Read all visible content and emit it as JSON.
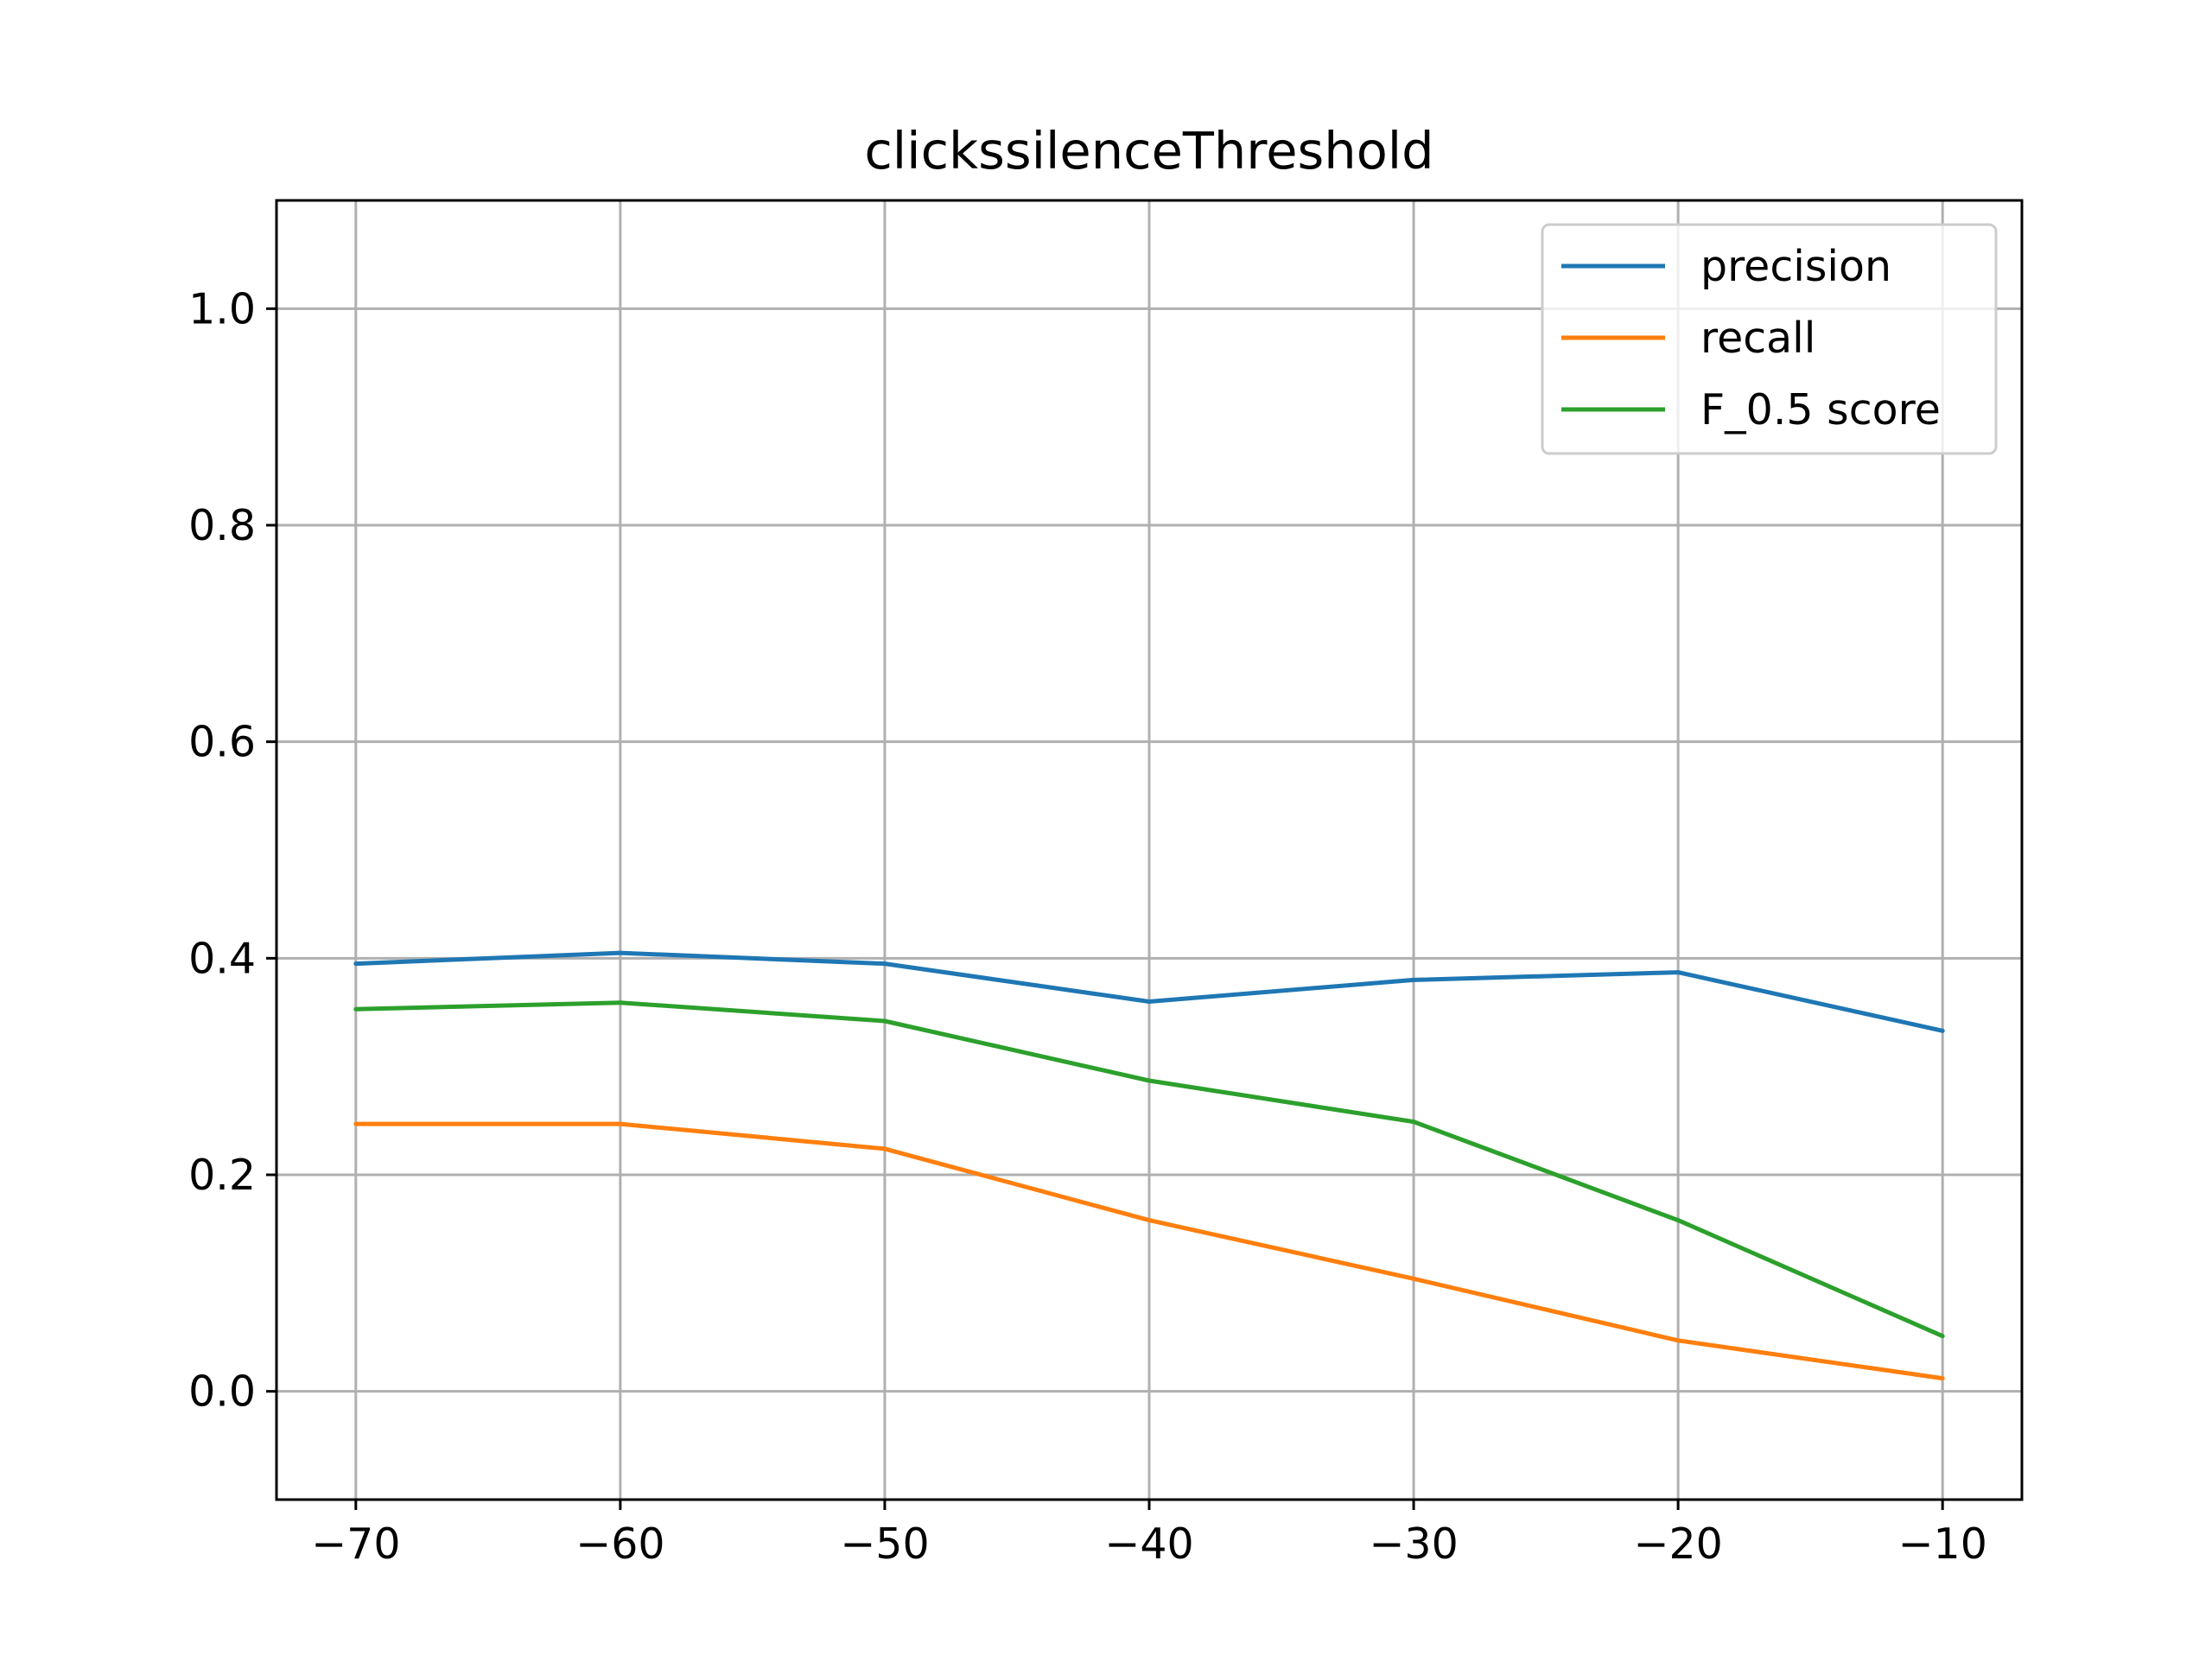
{
  "chart_data": {
    "type": "line",
    "title": "clickssilenceThreshold",
    "xlabel": "",
    "ylabel": "",
    "x": [
      -70,
      -60,
      -50,
      -40,
      -30,
      -20,
      -10
    ],
    "xlim": [
      -73,
      -7
    ],
    "ylim": [
      -0.1,
      1.1
    ],
    "x_ticks": [
      -70,
      -60,
      -50,
      -40,
      -30,
      -20,
      -10
    ],
    "x_tick_labels": [
      "−70",
      "−60",
      "−50",
      "−40",
      "−30",
      "−20",
      "−10"
    ],
    "y_ticks": [
      0.0,
      0.2,
      0.4,
      0.6,
      0.8,
      1.0
    ],
    "y_tick_labels": [
      "0.0",
      "0.2",
      "0.4",
      "0.6",
      "0.8",
      "1.0"
    ],
    "grid": true,
    "legend_position": "top-right",
    "series": [
      {
        "name": "precision",
        "color": "#1f77b4",
        "values": [
          0.395,
          0.405,
          0.395,
          0.36,
          0.38,
          0.387,
          0.333
        ]
      },
      {
        "name": "recall",
        "color": "#ff7f0e",
        "values": [
          0.247,
          0.247,
          0.224,
          0.158,
          0.104,
          0.047,
          0.012
        ]
      },
      {
        "name": "F_0.5 score",
        "color": "#2ca02c",
        "values": [
          0.353,
          0.359,
          0.342,
          0.287,
          0.249,
          0.158,
          0.051
        ]
      }
    ]
  }
}
